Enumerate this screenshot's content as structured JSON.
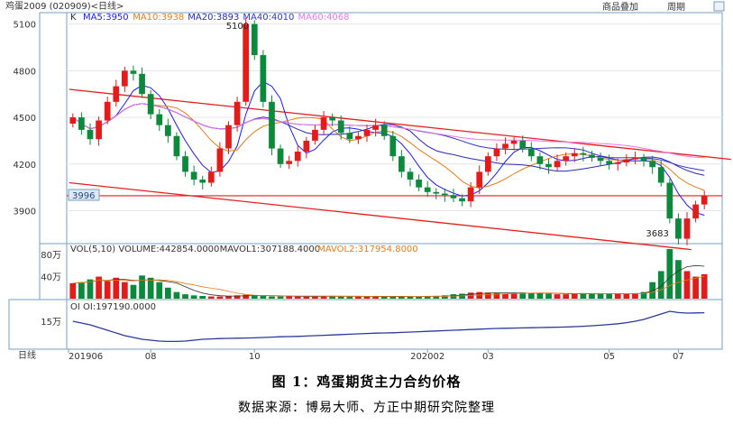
{
  "header": {
    "symbol": "鸡蛋2009 (020909)<日线>",
    "menu_add": "商品叠加",
    "menu_period": "周期"
  },
  "price_panel": {
    "k_label": "K",
    "ma_labels": [
      {
        "text": "MA5:3950",
        "color": "#1a1aff"
      },
      {
        "text": "MA10:3938",
        "color": "#e87d1a"
      },
      {
        "text": "MA20:3893",
        "color": "#2a2ab8"
      },
      {
        "text": "MA40:4010",
        "color": "#3535c8"
      },
      {
        "text": "MA60:4068",
        "color": "#e878e8"
      }
    ],
    "y_ticks": [
      "5100",
      "4800",
      "4500",
      "4200",
      "3900"
    ],
    "annotations": {
      "high": "5100",
      "low": "3683",
      "current_price_tag": "3996"
    }
  },
  "volume_panel": {
    "labels": [
      {
        "text": "VOL(5,10) VOLUME:442854.0000",
        "color": "#333333"
      },
      {
        "text": "MAVOL1:307188.4000",
        "color": "#333333"
      },
      {
        "text": "MAVOL2:317954.8000",
        "color": "#e87d1a"
      }
    ],
    "y_ticks": [
      "80万",
      "40万"
    ]
  },
  "oi_panel": {
    "label": "OI OI:197190.0000",
    "y_ticks": [
      "15万"
    ]
  },
  "x_axis": {
    "period_label": "日线",
    "ticks": [
      "201906",
      "08",
      "10",
      "202002",
      "03",
      "05",
      "07"
    ]
  },
  "caption": {
    "title": "图 1：鸡蛋期货主力合约价格",
    "source": "数据来源：博易大师、方正中期研究院整理"
  },
  "chart_data": {
    "type": "candlestick",
    "title": "",
    "y_range": [
      3700,
      5150
    ],
    "x_ticks": [
      "201906",
      "08",
      "10",
      "202002",
      "03",
      "05",
      "07"
    ],
    "close_series": [
      4500,
      4420,
      4360,
      4480,
      4600,
      4700,
      4800,
      4780,
      4650,
      4520,
      4450,
      4380,
      4250,
      4150,
      4100,
      4080,
      4150,
      4300,
      4450,
      4600,
      5100,
      4900,
      4600,
      4300,
      4200,
      4220,
      4280,
      4350,
      4420,
      4500,
      4480,
      4400,
      4360,
      4380,
      4420,
      4450,
      4380,
      4250,
      4150,
      4100,
      4050,
      4020,
      4010,
      4000,
      3980,
      3960,
      4050,
      4150,
      4250,
      4300,
      4330,
      4350,
      4300,
      4250,
      4200,
      4180,
      4220,
      4250,
      4270,
      4260,
      4240,
      4220,
      4200,
      4210,
      4230,
      4240,
      4220,
      4180,
      4080,
      3850,
      3720,
      3850,
      3940,
      3996
    ],
    "max_index": 20,
    "min_index": 70,
    "ma_values": {
      "MA5": 3950,
      "MA10": 3938,
      "MA20": 3893,
      "MA40": 4010,
      "MA60": 4068
    },
    "channel_upper": [
      [
        0,
        4680
      ],
      [
        74,
        4230
      ]
    ],
    "channel_lower": [
      [
        0,
        4080
      ],
      [
        74,
        3650
      ]
    ],
    "horizontal_level": 3996,
    "volume_y_range": [
      0,
      900000
    ],
    "volume_series": [
      280000,
      300000,
      350000,
      400000,
      320000,
      380000,
      300000,
      250000,
      420000,
      380000,
      300000,
      200000,
      120000,
      80000,
      60000,
      50000,
      40000,
      40000,
      50000,
      60000,
      70000,
      60000,
      50000,
      40000,
      40000,
      45000,
      40000,
      40000,
      40000,
      50000,
      50000,
      40000,
      40000,
      40000,
      40000,
      40000,
      40000,
      40000,
      40000,
      40000,
      40000,
      50000,
      50000,
      60000,
      80000,
      90000,
      110000,
      120000,
      110000,
      100000,
      90000,
      100000,
      110000,
      100000,
      100000,
      90000,
      80000,
      80000,
      90000,
      100000,
      90000,
      90000,
      90000,
      90000,
      90000,
      100000,
      120000,
      300000,
      500000,
      900000,
      700000,
      500000,
      400000,
      442854
    ],
    "mavol1": 307188.4,
    "mavol2": 317954.8,
    "oi_series": [
      150000,
      140000,
      130000,
      115000,
      100000,
      85000,
      70000,
      60000,
      50000,
      45000,
      40000,
      38000,
      38000,
      40000,
      45000,
      50000,
      52000,
      54000,
      55000,
      56000,
      57000,
      58000,
      60000,
      62000,
      64000,
      65000,
      66000,
      68000,
      70000,
      72000,
      74000,
      76000,
      78000,
      80000,
      82000,
      84000,
      85000,
      86000,
      88000,
      90000,
      92000,
      94000,
      96000,
      98000,
      100000,
      102000,
      104000,
      106000,
      108000,
      110000,
      111000,
      112000,
      113000,
      114000,
      115000,
      116000,
      117000,
      118000,
      120000,
      122000,
      125000,
      128000,
      132000,
      136000,
      142000,
      150000,
      160000,
      175000,
      190000,
      205000,
      198000,
      195000,
      196000,
      197190
    ],
    "oi_y_range": [
      0,
      230000
    ]
  }
}
